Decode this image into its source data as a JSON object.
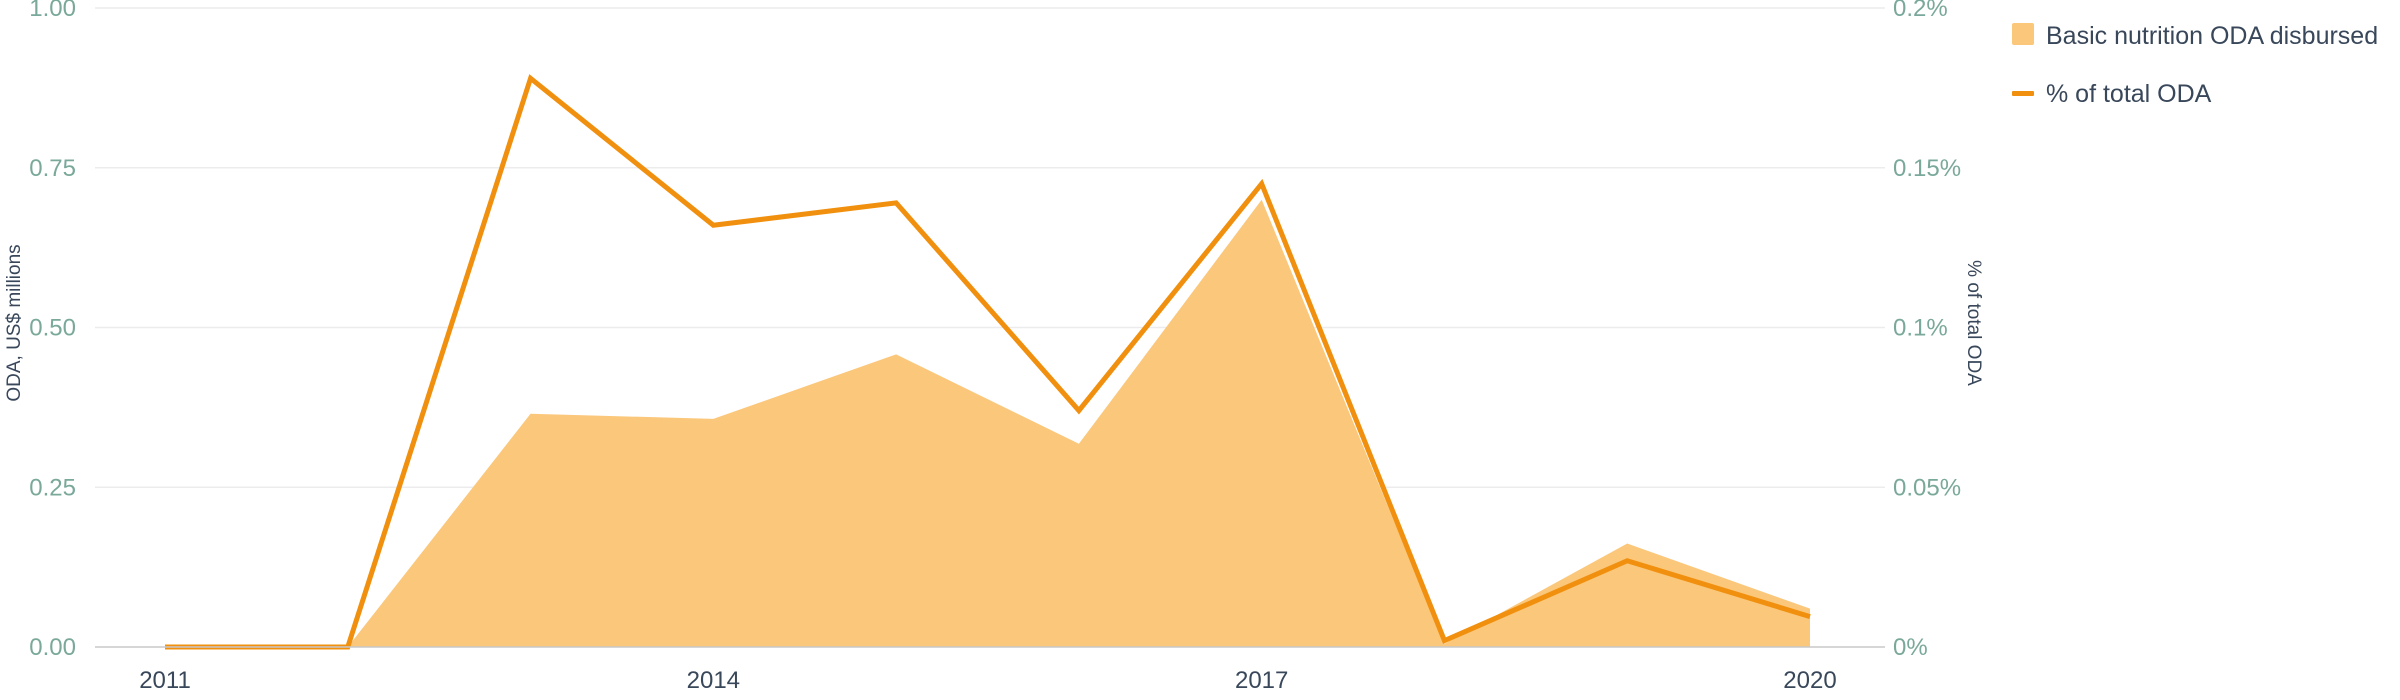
{
  "chart_data": {
    "type": "area",
    "x": [
      2011,
      2012,
      2013,
      2014,
      2015,
      2016,
      2017,
      2018,
      2019,
      2020
    ],
    "x_tick_labels": [
      "2011",
      "2014",
      "2017",
      "2020"
    ],
    "series": [
      {
        "name": "Basic nutrition ODA disbursed",
        "type": "area",
        "axis": "left",
        "color": "#fbc77b",
        "values": [
          0,
          0,
          0.365,
          0.357,
          0.458,
          0.318,
          0.7,
          0.005,
          0.162,
          0.06
        ]
      },
      {
        "name": "% of total ODA",
        "type": "line",
        "axis": "right",
        "color": "#f0900e",
        "values": [
          0,
          0,
          0.178,
          0.132,
          0.139,
          0.074,
          0.145,
          0.002,
          0.027,
          0.0095
        ]
      }
    ],
    "y_left": {
      "label": "ODA, US$ millions",
      "range": [
        0,
        1
      ],
      "tick_values": [
        0,
        0.25,
        0.5,
        0.75,
        1
      ],
      "tick_labels": [
        "0.00",
        "0.25",
        "0.50",
        "0.75",
        "1.00"
      ]
    },
    "y_right": {
      "label": "% of total ODA",
      "range": [
        0,
        0.2
      ],
      "tick_values": [
        0,
        0.05,
        0.1,
        0.15,
        0.2
      ],
      "tick_labels": [
        "0%",
        "0.05%",
        "0.1%",
        "0.15%",
        "0.2%"
      ]
    },
    "x_range": [
      2011,
      2020
    ],
    "grid": true,
    "legend_position": "top-right"
  }
}
